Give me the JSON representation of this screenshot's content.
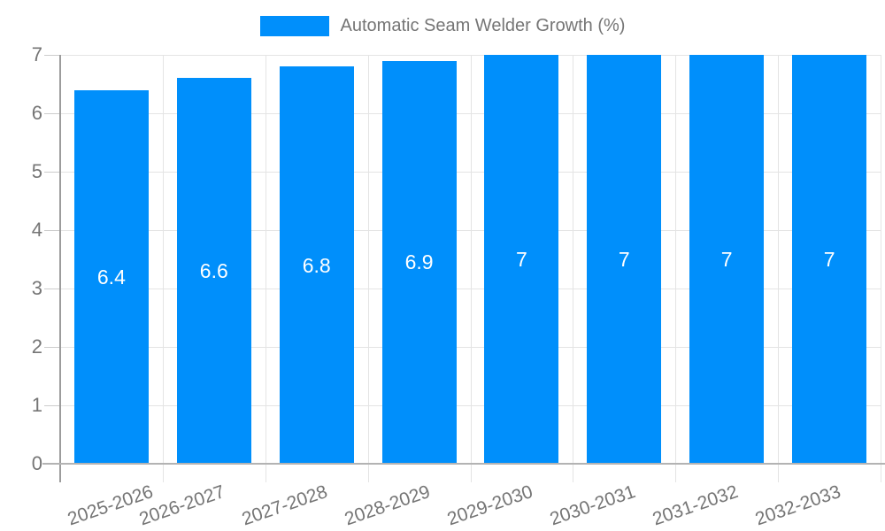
{
  "legend": {
    "label": "Automatic Seam Welder Growth (%)"
  },
  "colors": {
    "bar": "#008FFB",
    "axis_text": "#757575",
    "gridline": "#e4e4e4",
    "y_axis_line": "#9c9c9c",
    "x_axis_line": "#b3b3b3",
    "tick_line": "#cccccc",
    "value_label": "#ffffff",
    "background": "#ffffff"
  },
  "chart_data": {
    "type": "bar",
    "title": "",
    "xlabel": "",
    "ylabel": "",
    "categories": [
      "2025-2026",
      "2026-2027",
      "2027-2028",
      "2028-2029",
      "2029-2030",
      "2030-2031",
      "2031-2032",
      "2032-2033"
    ],
    "series": [
      {
        "name": "Automatic Seam Welder Growth (%)",
        "values": [
          6.4,
          6.6,
          6.8,
          6.9,
          7,
          7,
          7,
          7
        ]
      }
    ],
    "value_labels": [
      "6.4",
      "6.6",
      "6.8",
      "6.9",
      "7",
      "7",
      "7",
      "7"
    ],
    "ylim": [
      0,
      7
    ],
    "yticks": [
      0,
      1,
      2,
      3,
      4,
      5,
      6,
      7
    ],
    "grid": true,
    "legend_position": "top-center",
    "x_label_rotation_deg": -19
  }
}
